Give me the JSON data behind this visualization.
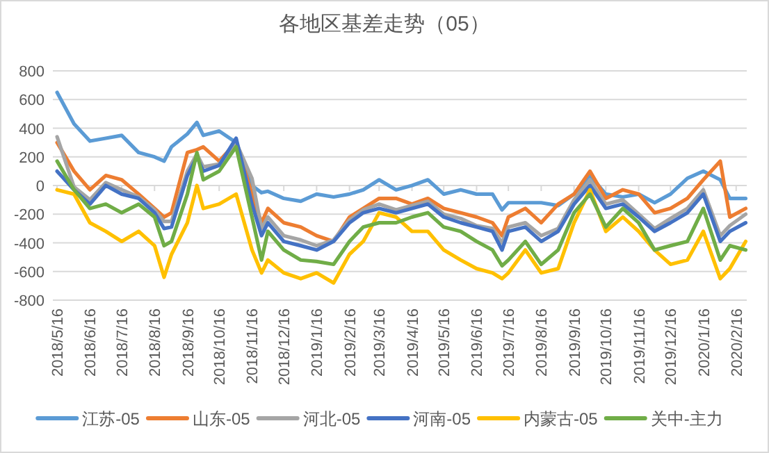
{
  "chart_data": {
    "type": "line",
    "title": "各地区基差走势（05）",
    "x": [
      "2018-05-16",
      "2018-06-01",
      "2018-06-16",
      "2018-07-01",
      "2018-07-16",
      "2018-08-01",
      "2018-08-16",
      "2018-08-25",
      "2018-09-01",
      "2018-09-16",
      "2018-09-25",
      "2018-10-01",
      "2018-10-16",
      "2018-11-01",
      "2018-11-16",
      "2018-11-25",
      "2018-12-01",
      "2018-12-16",
      "2019-01-01",
      "2019-01-16",
      "2019-02-01",
      "2019-02-16",
      "2019-03-01",
      "2019-03-16",
      "2019-04-01",
      "2019-04-16",
      "2019-05-01",
      "2019-05-16",
      "2019-06-01",
      "2019-06-16",
      "2019-07-01",
      "2019-07-10",
      "2019-07-16",
      "2019-08-01",
      "2019-08-16",
      "2019-09-01",
      "2019-09-16",
      "2019-10-01",
      "2019-10-16",
      "2019-11-01",
      "2019-11-16",
      "2019-12-01",
      "2019-12-16",
      "2020-01-01",
      "2020-01-16",
      "2020-02-01",
      "2020-02-10",
      "2020-02-25"
    ],
    "xlim": [
      "2018-05-12",
      "2020-02-26"
    ],
    "xticks": [
      {
        "value": "2018-05-16",
        "label": "2018/5/16"
      },
      {
        "value": "2018-06-16",
        "label": "2018/6/16"
      },
      {
        "value": "2018-07-16",
        "label": "2018/7/16"
      },
      {
        "value": "2018-08-16",
        "label": "2018/8/16"
      },
      {
        "value": "2018-09-16",
        "label": "2018/9/16"
      },
      {
        "value": "2018-10-16",
        "label": "2018/10/16"
      },
      {
        "value": "2018-11-16",
        "label": "2018/11/16"
      },
      {
        "value": "2018-12-16",
        "label": "2018/12/16"
      },
      {
        "value": "2019-01-16",
        "label": "2019/1/16"
      },
      {
        "value": "2019-02-16",
        "label": "2019/2/16"
      },
      {
        "value": "2019-03-16",
        "label": "2019/3/16"
      },
      {
        "value": "2019-04-16",
        "label": "2019/4/16"
      },
      {
        "value": "2019-05-16",
        "label": "2019/5/16"
      },
      {
        "value": "2019-06-16",
        "label": "2019/6/16"
      },
      {
        "value": "2019-07-16",
        "label": "2019/7/16"
      },
      {
        "value": "2019-08-16",
        "label": "2019/8/16"
      },
      {
        "value": "2019-09-16",
        "label": "2019/9/16"
      },
      {
        "value": "2019-10-16",
        "label": "2019/10/16"
      },
      {
        "value": "2019-11-16",
        "label": "2019/11/16"
      },
      {
        "value": "2019-12-16",
        "label": "2019/12/16"
      },
      {
        "value": "2020-01-16",
        "label": "2020/1/16"
      },
      {
        "value": "2020-02-16",
        "label": "2020/2/16"
      }
    ],
    "ylim": [
      -800,
      800
    ],
    "yticks": [
      -800,
      -600,
      -400,
      -200,
      0,
      200,
      400,
      600,
      800
    ],
    "grid": "y",
    "legend": "bottom",
    "series": [
      {
        "name": "江苏-05",
        "color": "#5b9bd5",
        "values": [
          650,
          430,
          310,
          330,
          350,
          230,
          200,
          170,
          270,
          360,
          440,
          350,
          380,
          300,
          0,
          -50,
          -40,
          -90,
          -110,
          -60,
          -80,
          -60,
          -30,
          40,
          -30,
          0,
          40,
          -60,
          -30,
          -60,
          -60,
          -170,
          -120,
          -120,
          -120,
          -140,
          -60,
          70,
          -60,
          -80,
          -60,
          -120,
          -60,
          50,
          100,
          40,
          -90,
          -90
        ]
      },
      {
        "name": "山东-05",
        "color": "#ed7d31",
        "values": [
          300,
          100,
          -30,
          70,
          40,
          -60,
          -160,
          -220,
          -190,
          230,
          250,
          270,
          170,
          300,
          -60,
          -260,
          -160,
          -260,
          -290,
          -350,
          -390,
          -220,
          -160,
          -90,
          -90,
          -130,
          -90,
          -160,
          -190,
          -220,
          -260,
          -350,
          -220,
          -160,
          -260,
          -130,
          -60,
          100,
          -90,
          -30,
          -60,
          -190,
          -160,
          -90,
          40,
          170,
          -220,
          -160
        ]
      },
      {
        "name": "河北-05",
        "color": "#a5a5a5",
        "values": [
          340,
          -10,
          -100,
          20,
          -30,
          -80,
          -170,
          -250,
          -250,
          100,
          220,
          130,
          150,
          300,
          50,
          -300,
          -220,
          -350,
          -380,
          -420,
          -380,
          -240,
          -170,
          -130,
          -170,
          -140,
          -110,
          -200,
          -230,
          -280,
          -300,
          -400,
          -290,
          -260,
          -350,
          -300,
          -100,
          40,
          -130,
          -100,
          -200,
          -300,
          -230,
          -160,
          -30,
          -350,
          -280,
          -200
        ]
      },
      {
        "name": "河南-05",
        "color": "#4472c4",
        "values": [
          100,
          -30,
          -130,
          0,
          -60,
          -90,
          -190,
          -300,
          -290,
          70,
          200,
          100,
          140,
          330,
          -130,
          -350,
          -260,
          -390,
          -420,
          -450,
          -390,
          -260,
          -190,
          -160,
          -190,
          -160,
          -130,
          -220,
          -260,
          -290,
          -320,
          -450,
          -320,
          -290,
          -390,
          -320,
          -130,
          0,
          -160,
          -130,
          -220,
          -320,
          -260,
          -190,
          -60,
          -390,
          -320,
          -260
        ]
      },
      {
        "name": "内蒙古-05",
        "color": "#ffc000",
        "values": [
          -30,
          -60,
          -260,
          -320,
          -390,
          -320,
          -420,
          -640,
          -480,
          -260,
          0,
          -160,
          -130,
          -60,
          -450,
          -610,
          -520,
          -610,
          -650,
          -610,
          -680,
          -480,
          -390,
          -190,
          -220,
          -320,
          -320,
          -450,
          -520,
          -580,
          -610,
          -650,
          -610,
          -450,
          -610,
          -580,
          -260,
          -30,
          -320,
          -220,
          -320,
          -450,
          -550,
          -520,
          -320,
          -650,
          -580,
          -390
        ]
      },
      {
        "name": "关中-主力",
        "color": "#70ad47",
        "values": [
          170,
          -30,
          -160,
          -130,
          -190,
          -130,
          -220,
          -420,
          -390,
          -60,
          230,
          40,
          100,
          270,
          -220,
          -520,
          -320,
          -450,
          -520,
          -530,
          -550,
          -390,
          -290,
          -260,
          -260,
          -220,
          -190,
          -290,
          -320,
          -390,
          -450,
          -560,
          -520,
          -390,
          -550,
          -450,
          -190,
          -60,
          -290,
          -160,
          -260,
          -450,
          -420,
          -390,
          -160,
          -520,
          -420,
          -450
        ]
      }
    ]
  }
}
